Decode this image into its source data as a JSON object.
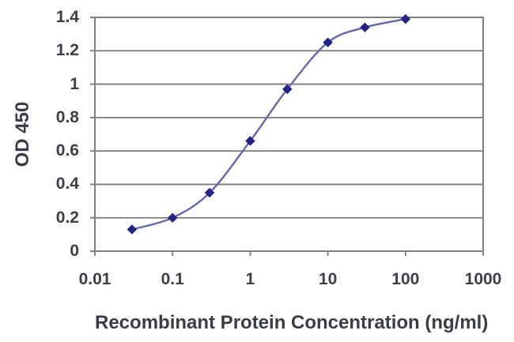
{
  "chart_data": {
    "type": "line",
    "title": "",
    "xlabel": "Recombinant Protein Concentration (ng/ml)",
    "ylabel": "OD 450",
    "x_scale": "log",
    "xlim": [
      0.01,
      1000
    ],
    "ylim": [
      0,
      1.4
    ],
    "x_ticks": [
      0.01,
      0.1,
      1,
      10,
      100,
      1000
    ],
    "x_tick_labels": [
      "0.01",
      "0.1",
      "1",
      "10",
      "100",
      "1000"
    ],
    "y_ticks": [
      0,
      0.2,
      0.4,
      0.6,
      0.8,
      1,
      1.2,
      1.4
    ],
    "y_tick_labels": [
      "0",
      "0.2",
      "0.4",
      "0.6",
      "0.8",
      "1",
      "1.2",
      "1.4"
    ],
    "grid": "horizontal",
    "legend": "none",
    "series": [
      {
        "name": "OD 450",
        "x": [
          0.03,
          0.1,
          0.3,
          1,
          3,
          10,
          30,
          100
        ],
        "y": [
          0.13,
          0.2,
          0.35,
          0.66,
          0.97,
          1.25,
          1.34,
          1.39
        ],
        "marker": "diamond",
        "smooth": true
      }
    ]
  },
  "colors": {
    "line": "#6868AE",
    "marker": "#232389",
    "grid": "#7A7A7A",
    "plot_border": "#808080",
    "tick_text": "#3E3E48",
    "title_text": "#3C3C46",
    "background": "#FFFFFF"
  }
}
